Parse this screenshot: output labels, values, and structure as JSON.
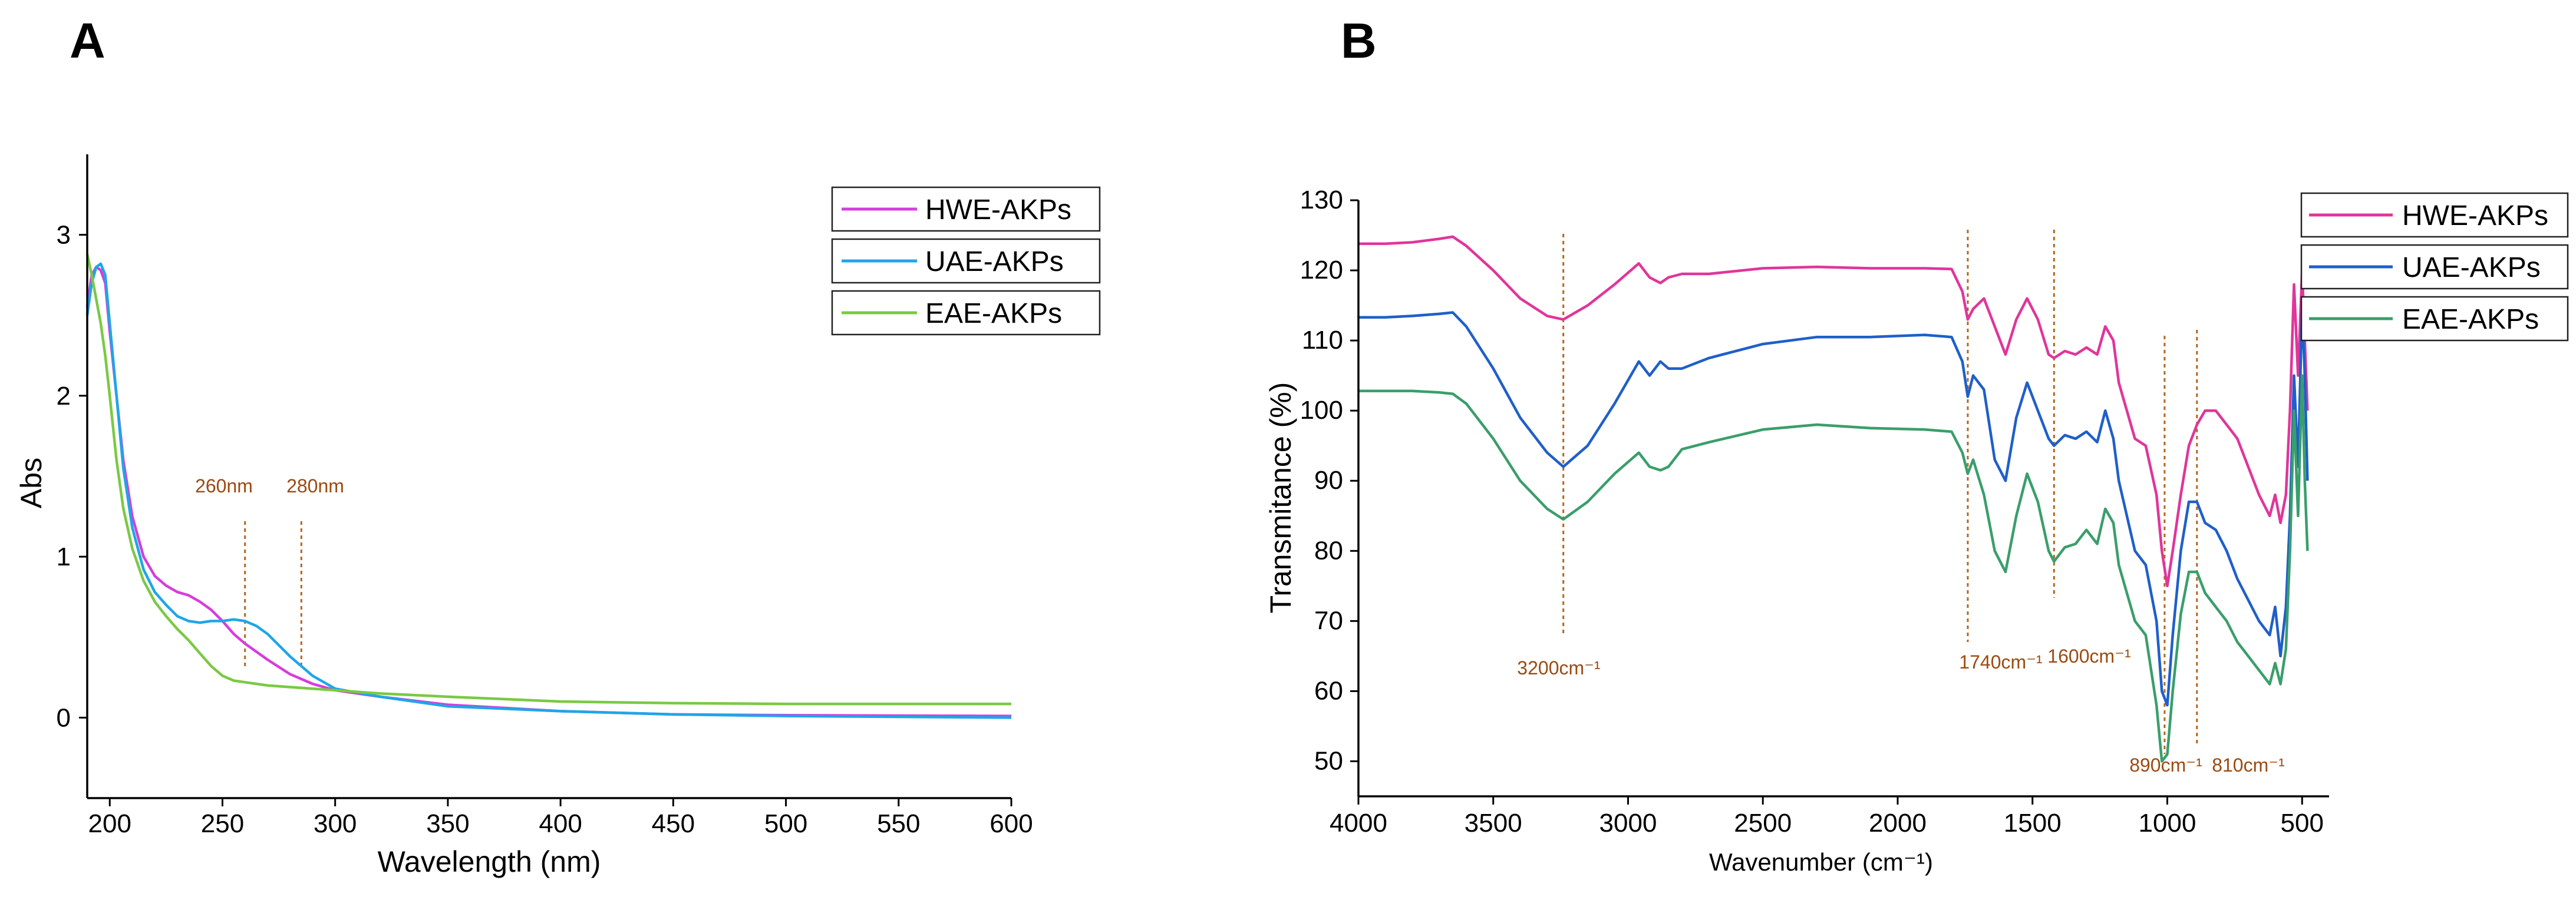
{
  "chart_data": [
    {
      "panel_label": "A",
      "type": "line",
      "title": "",
      "xlabel": "Wavelength (nm)",
      "ylabel": "Abs",
      "xlim": [
        190,
        600
      ],
      "ylim": [
        -0.5,
        3.5
      ],
      "x_ticks": [
        200,
        250,
        300,
        350,
        400,
        450,
        500,
        550,
        600
      ],
      "y_ticks": [
        0,
        1,
        2,
        3
      ],
      "grid": false,
      "legend_position": "top-right",
      "annotations": [
        {
          "label": "260nm",
          "x": 260
        },
        {
          "label": "280nm",
          "x": 285
        }
      ],
      "series": [
        {
          "name": "HWE-AKPs",
          "color": "#d63ddb",
          "x": [
            190,
            192,
            194,
            196,
            198,
            200,
            203,
            206,
            210,
            215,
            220,
            225,
            230,
            235,
            240,
            245,
            250,
            255,
            260,
            265,
            270,
            280,
            290,
            300,
            320,
            350,
            400,
            450,
            500,
            600
          ],
          "y": [
            2.55,
            2.75,
            2.8,
            2.78,
            2.7,
            2.4,
            2.0,
            1.6,
            1.25,
            1.0,
            0.88,
            0.82,
            0.78,
            0.76,
            0.72,
            0.67,
            0.6,
            0.52,
            0.46,
            0.41,
            0.36,
            0.27,
            0.21,
            0.17,
            0.13,
            0.08,
            0.04,
            0.02,
            0.015,
            0.01
          ]
        },
        {
          "name": "UAE-AKPs",
          "color": "#1ea6e8",
          "x": [
            190,
            192,
            194,
            196,
            198,
            200,
            203,
            206,
            210,
            215,
            220,
            225,
            230,
            235,
            240,
            245,
            250,
            255,
            260,
            265,
            270,
            280,
            290,
            300,
            320,
            350,
            400,
            450,
            500,
            600
          ],
          "y": [
            2.5,
            2.7,
            2.8,
            2.82,
            2.75,
            2.45,
            2.0,
            1.55,
            1.18,
            0.92,
            0.78,
            0.7,
            0.63,
            0.6,
            0.59,
            0.6,
            0.6,
            0.61,
            0.6,
            0.57,
            0.52,
            0.38,
            0.26,
            0.18,
            0.13,
            0.07,
            0.04,
            0.02,
            0.01,
            0.0
          ]
        },
        {
          "name": "EAE-AKPs",
          "color": "#7ac943",
          "x": [
            190,
            192,
            194,
            196,
            198,
            200,
            203,
            206,
            210,
            215,
            220,
            225,
            230,
            235,
            240,
            245,
            250,
            255,
            260,
            265,
            270,
            280,
            290,
            300,
            320,
            350,
            400,
            450,
            500,
            600
          ],
          "y": [
            2.88,
            2.75,
            2.6,
            2.45,
            2.25,
            2.0,
            1.6,
            1.3,
            1.05,
            0.85,
            0.72,
            0.63,
            0.55,
            0.48,
            0.4,
            0.32,
            0.26,
            0.23,
            0.22,
            0.21,
            0.2,
            0.19,
            0.18,
            0.17,
            0.15,
            0.13,
            0.1,
            0.09,
            0.085,
            0.085
          ]
        }
      ]
    },
    {
      "panel_label": "B",
      "type": "line",
      "title": "",
      "xlabel": "Wavenumber (cm⁻¹)",
      "ylabel": "Transmitance (%)",
      "xlim": [
        4000,
        400
      ],
      "ylim": [
        45,
        130
      ],
      "x_ticks": [
        4000,
        3500,
        3000,
        2500,
        2000,
        1500,
        1000,
        500
      ],
      "y_ticks": [
        50,
        60,
        70,
        80,
        90,
        100,
        110,
        120,
        130
      ],
      "grid": false,
      "legend_position": "top-right",
      "annotations": [
        {
          "label": "3200cm⁻¹",
          "x": 3240
        },
        {
          "label": "1740cm⁻¹",
          "x": 1740
        },
        {
          "label": "1600cm⁻¹",
          "x": 1420
        },
        {
          "label": "890cm⁻¹",
          "x": 1010
        },
        {
          "label": "810cm⁻¹",
          "x": 890
        }
      ],
      "series": [
        {
          "name": "HWE-AKPs",
          "color": "#e0359b",
          "x": [
            4000,
            3900,
            3800,
            3700,
            3650,
            3600,
            3500,
            3400,
            3300,
            3240,
            3150,
            3050,
            2960,
            2920,
            2880,
            2850,
            2800,
            2700,
            2500,
            2300,
            2100,
            1900,
            1800,
            1760,
            1740,
            1720,
            1680,
            1640,
            1600,
            1560,
            1520,
            1480,
            1440,
            1420,
            1380,
            1340,
            1300,
            1260,
            1230,
            1200,
            1180,
            1150,
            1120,
            1080,
            1040,
            1020,
            1000,
            980,
            950,
            920,
            890,
            860,
            820,
            780,
            740,
            700,
            660,
            620,
            600,
            580,
            560,
            545,
            530,
            515,
            500,
            490,
            480
          ],
          "y": [
            123.8,
            123.8,
            124,
            124.5,
            124.8,
            123.5,
            120,
            116,
            113.5,
            113,
            115,
            118,
            121,
            119,
            118.2,
            119,
            119.5,
            119.5,
            120.3,
            120.5,
            120.3,
            120.3,
            120.2,
            117,
            113,
            114.5,
            116,
            112,
            108,
            113,
            116,
            113,
            108,
            107.5,
            108.5,
            108,
            109,
            108,
            112,
            110,
            104,
            100,
            96,
            95,
            88,
            80,
            75,
            80,
            88,
            95,
            98,
            100,
            100,
            98,
            96,
            92,
            88,
            85,
            88,
            84,
            88,
            100,
            118,
            105,
            120,
            110,
            100
          ]
        },
        {
          "name": "UAE-AKPs",
          "color": "#1f5fc9",
          "x": [
            4000,
            3900,
            3800,
            3700,
            3650,
            3600,
            3500,
            3400,
            3300,
            3240,
            3150,
            3050,
            2960,
            2920,
            2880,
            2850,
            2800,
            2700,
            2500,
            2300,
            2100,
            1900,
            1800,
            1760,
            1740,
            1720,
            1680,
            1640,
            1600,
            1560,
            1520,
            1480,
            1440,
            1420,
            1380,
            1340,
            1300,
            1260,
            1230,
            1200,
            1180,
            1150,
            1120,
            1080,
            1040,
            1020,
            1000,
            980,
            950,
            920,
            890,
            860,
            820,
            780,
            740,
            700,
            660,
            620,
            600,
            580,
            560,
            545,
            530,
            515,
            500,
            490,
            480
          ],
          "y": [
            113.3,
            113.3,
            113.5,
            113.8,
            114,
            112,
            106,
            99,
            94,
            92,
            95,
            101,
            107,
            105,
            107,
            106,
            106,
            107.5,
            109.5,
            110.5,
            110.5,
            110.8,
            110.5,
            107,
            102,
            105,
            103,
            93,
            90,
            99,
            104,
            100,
            96,
            95,
            96.5,
            96,
            97,
            95.5,
            100,
            96,
            90,
            85,
            80,
            78,
            70,
            60,
            58,
            68,
            80,
            87,
            87,
            84,
            83,
            80,
            76,
            73,
            70,
            68,
            72,
            65,
            72,
            85,
            105,
            92,
            115,
            105,
            90
          ]
        },
        {
          "name": "EAE-AKPs",
          "color": "#3a9e6b",
          "x": [
            4000,
            3900,
            3800,
            3700,
            3650,
            3600,
            3500,
            3400,
            3300,
            3240,
            3150,
            3050,
            2960,
            2920,
            2880,
            2850,
            2800,
            2700,
            2500,
            2300,
            2100,
            1900,
            1800,
            1760,
            1740,
            1720,
            1680,
            1640,
            1600,
            1560,
            1520,
            1480,
            1440,
            1420,
            1380,
            1340,
            1300,
            1260,
            1230,
            1200,
            1180,
            1150,
            1120,
            1080,
            1040,
            1020,
            1000,
            980,
            950,
            920,
            890,
            860,
            820,
            780,
            740,
            700,
            660,
            620,
            600,
            580,
            560,
            545,
            530,
            515,
            500,
            490,
            480
          ],
          "y": [
            102.8,
            102.8,
            102.8,
            102.6,
            102.4,
            101,
            96,
            90,
            86,
            84.5,
            87,
            91,
            94,
            92,
            91.5,
            92,
            94.5,
            95.5,
            97.3,
            98,
            97.5,
            97.3,
            97,
            94,
            91,
            93,
            88,
            80,
            77,
            85,
            91,
            87,
            80,
            78.5,
            80.5,
            81,
            83,
            81,
            86,
            84,
            78,
            74,
            70,
            68,
            58,
            50,
            51,
            60,
            71,
            77,
            77,
            74,
            72,
            70,
            67,
            65,
            63,
            61,
            64,
            61,
            66,
            80,
            100,
            85,
            105,
            90,
            80
          ]
        }
      ]
    }
  ]
}
